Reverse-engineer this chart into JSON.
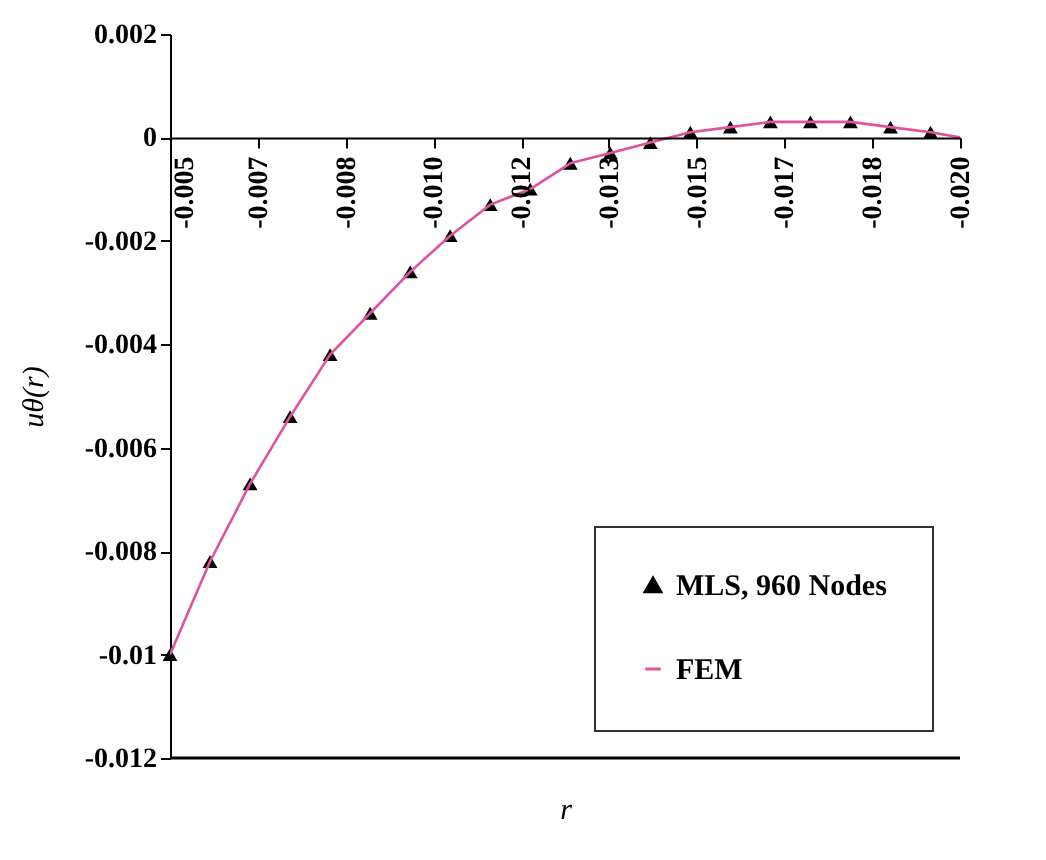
{
  "chart_data": {
    "type": "scatter",
    "xlabel": "r",
    "ylabel": "uθ(r)",
    "xlim": [
      -0.005,
      -0.02
    ],
    "xticks": [
      {
        "value": -0.005,
        "label": "-0.005"
      },
      {
        "value": -0.0066667,
        "label": "-0.007"
      },
      {
        "value": -0.0083333,
        "label": "-0.008"
      },
      {
        "value": -0.01,
        "label": "-0.010"
      },
      {
        "value": -0.0116667,
        "label": "-0.012"
      },
      {
        "value": -0.0133333,
        "label": "-0.013"
      },
      {
        "value": -0.015,
        "label": "-0.015"
      },
      {
        "value": -0.0166667,
        "label": "-0.017"
      },
      {
        "value": -0.0183333,
        "label": "-0.018"
      },
      {
        "value": -0.02,
        "label": "-0.020"
      }
    ],
    "ylim": [
      -0.012,
      0.002
    ],
    "yticks": [
      -0.012,
      -0.01,
      -0.008,
      -0.006,
      -0.004,
      -0.002,
      0,
      0.002
    ],
    "grid": false,
    "legend": "bottom right",
    "series": [
      {
        "name": "MLS, 960 Nodes",
        "marker": "triangle",
        "color": "#000000",
        "x": [
          -0.005,
          -0.00576,
          -0.00652,
          -0.00728,
          -0.00804,
          -0.0088,
          -0.00956,
          -0.01032,
          -0.01108,
          -0.01184,
          -0.0126,
          -0.01336,
          -0.01412,
          -0.01488,
          -0.01564,
          -0.0164,
          -0.01716,
          -0.01792,
          -0.01868,
          -0.01944
        ],
        "values": [
          -0.01,
          -0.0082,
          -0.0067,
          -0.0054,
          -0.0042,
          -0.0034,
          -0.0026,
          -0.0019,
          -0.0013,
          -0.001,
          -0.0005,
          -0.0003,
          -0.0001,
          0.0001,
          0.0002,
          0.0003,
          0.0003,
          0.0003,
          0.0002,
          0.0001
        ]
      },
      {
        "name": "FEM",
        "type": "line",
        "line_style": "solid",
        "color": "#e0529c",
        "x": [
          -0.005,
          -0.00576,
          -0.00652,
          -0.00728,
          -0.00804,
          -0.0088,
          -0.00956,
          -0.01032,
          -0.01108,
          -0.01184,
          -0.0126,
          -0.01336,
          -0.01412,
          -0.01488,
          -0.01564,
          -0.0164,
          -0.01716,
          -0.01792,
          -0.01868,
          -0.01944,
          -0.02
        ],
        "values": [
          -0.01,
          -0.0082,
          -0.0067,
          -0.0054,
          -0.0042,
          -0.0034,
          -0.0026,
          -0.0019,
          -0.0013,
          -0.001,
          -0.0005,
          -0.0003,
          -0.0001,
          0.0001,
          0.0002,
          0.0003,
          0.0003,
          0.0003,
          0.0002,
          0.0001,
          0.0
        ]
      }
    ]
  }
}
